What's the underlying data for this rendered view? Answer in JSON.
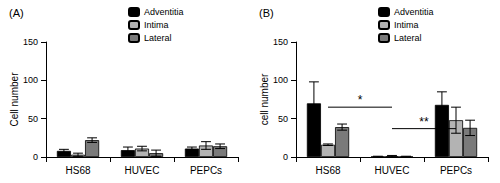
{
  "chart_data": [
    {
      "type": "bar",
      "title": "(A)",
      "y_label": "Cell number",
      "categories": [
        "HS68",
        "HUVEC",
        "PEPCs"
      ],
      "series": [
        {
          "name": "Adventitia",
          "color": "#000000",
          "values": [
            8,
            9,
            11
          ],
          "errors": [
            2,
            4,
            2
          ]
        },
        {
          "name": "Intima",
          "color": "#b3b3b3",
          "values": [
            3,
            11,
            15
          ],
          "errors": [
            2,
            3,
            5
          ]
        },
        {
          "name": "Lateral",
          "color": "#7a7a7a",
          "values": [
            22,
            5,
            14
          ],
          "errors": [
            3,
            4,
            3
          ]
        }
      ],
      "ylim": [
        0,
        150
      ],
      "yticks": [
        0,
        50,
        100,
        150
      ],
      "grid": false,
      "legend": "top"
    },
    {
      "type": "bar",
      "title": "(B)",
      "y_label": "cell number",
      "categories": [
        "HS68",
        "HUVEC",
        "PEPCs"
      ],
      "series": [
        {
          "name": "Adventitia",
          "color": "#000000",
          "values": [
            70,
            0.5,
            68
          ],
          "errors": [
            28,
            0.5,
            17
          ]
        },
        {
          "name": "Intima",
          "color": "#b3b3b3",
          "values": [
            16,
            1,
            48
          ],
          "errors": [
            1,
            1,
            17
          ]
        },
        {
          "name": "Lateral",
          "color": "#7a7a7a",
          "values": [
            39,
            0.5,
            38
          ],
          "errors": [
            4,
            0.5,
            10
          ]
        }
      ],
      "annotations": [
        {
          "text": "*",
          "from": "HS68",
          "to": "HUVEC",
          "y": 65
        },
        {
          "text": "**",
          "from": "HUVEC",
          "to": "PEPCs",
          "y": 37
        }
      ],
      "ylim": [
        0,
        150
      ],
      "yticks": [
        0,
        50,
        100,
        150
      ],
      "grid": false,
      "legend": "top"
    }
  ]
}
